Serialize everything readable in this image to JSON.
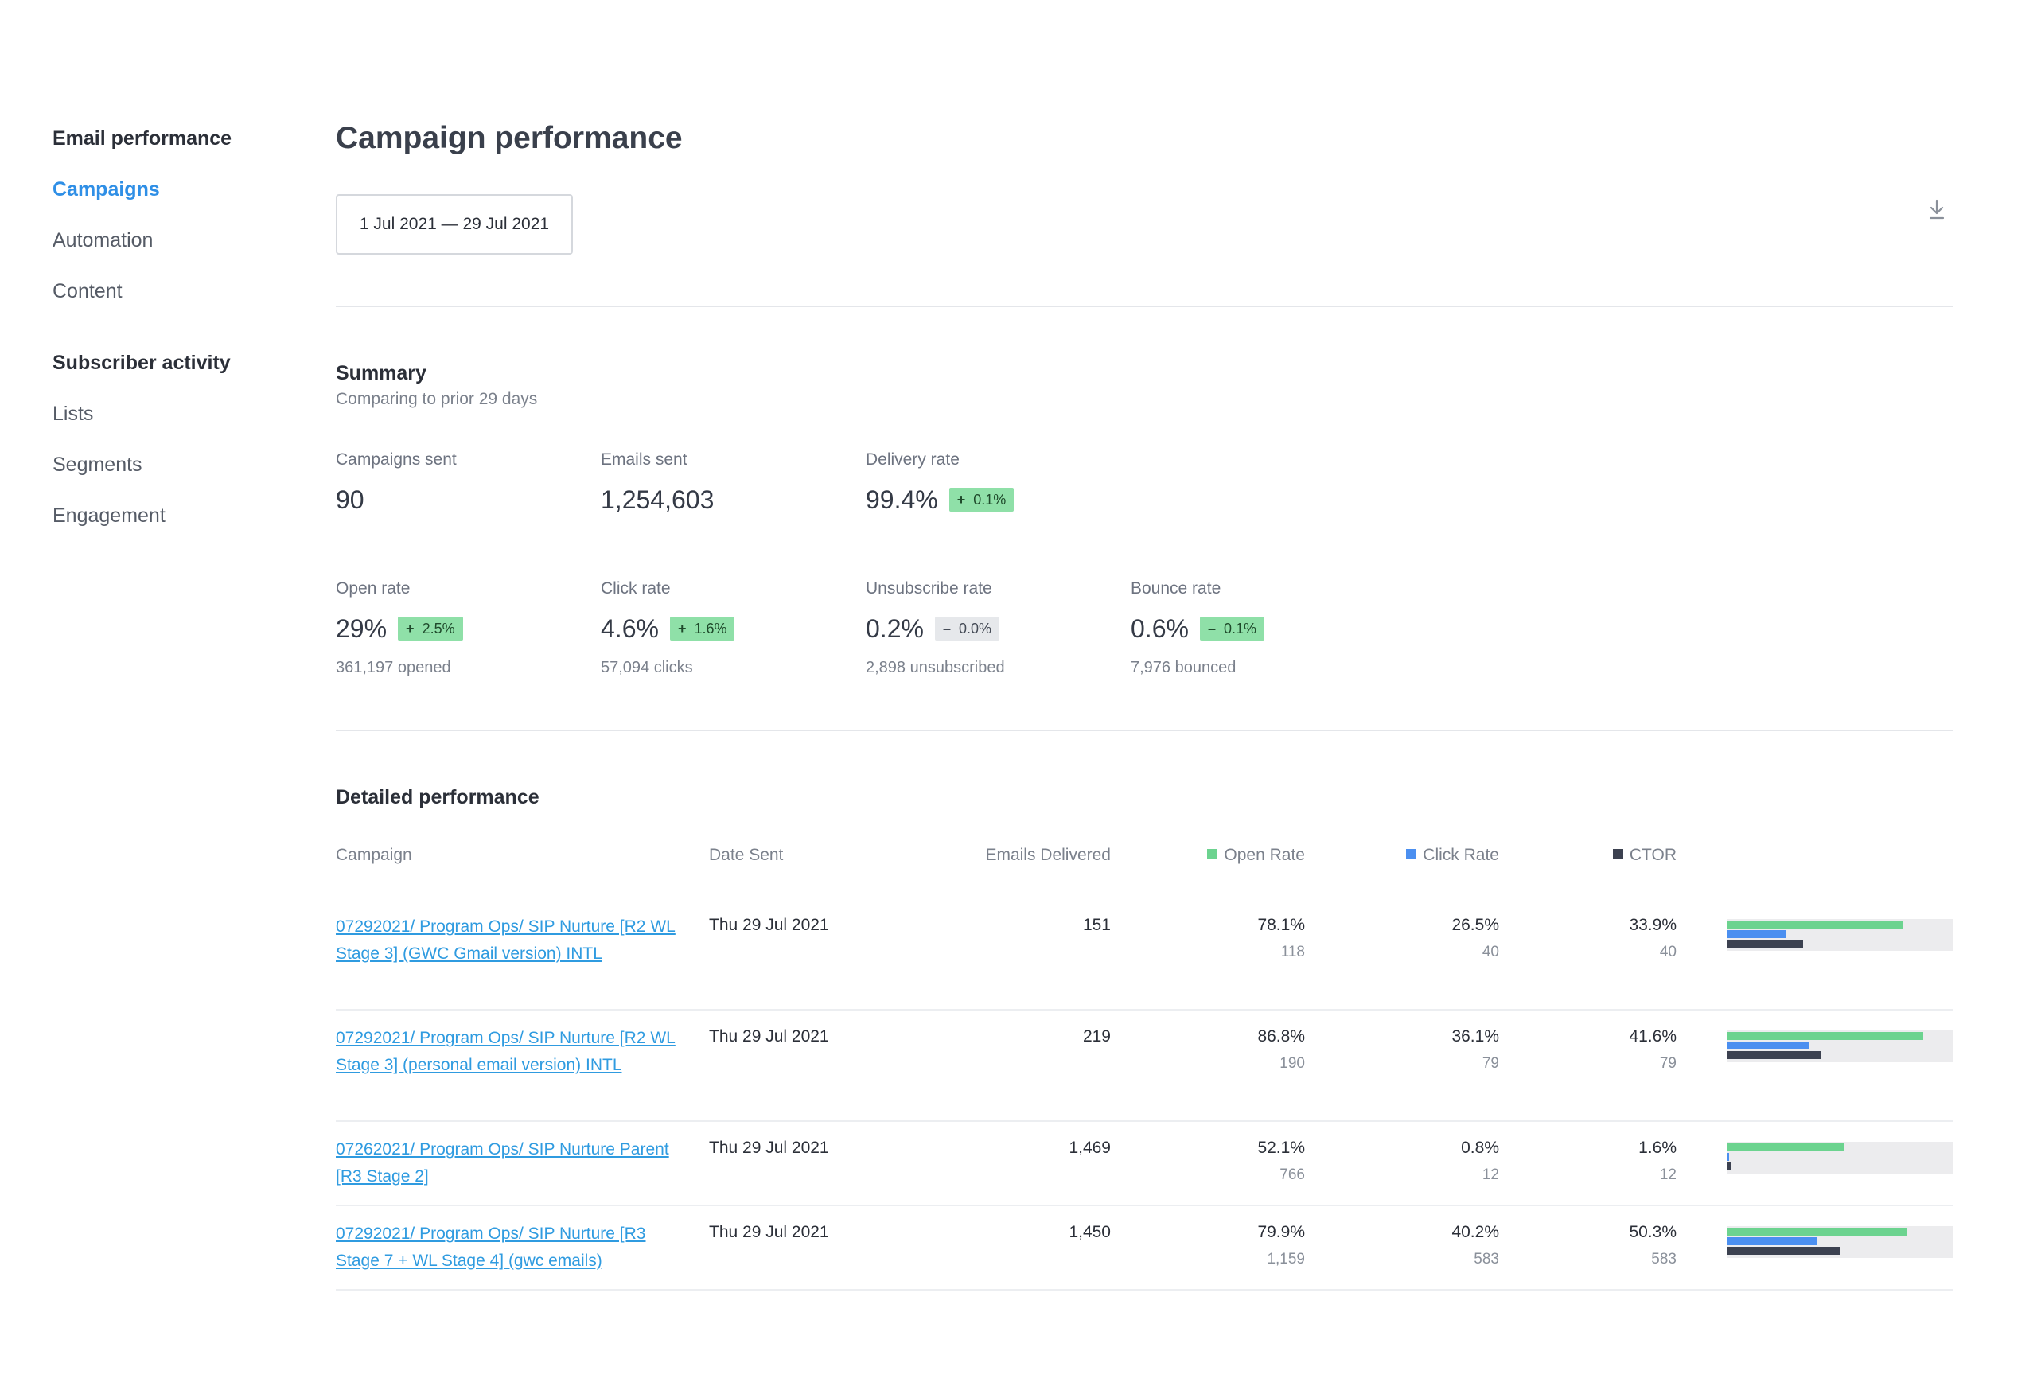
{
  "sidebar": {
    "section1": "Email performance",
    "items1": [
      "Campaigns",
      "Automation",
      "Content"
    ],
    "section2": "Subscriber activity",
    "items2": [
      "Lists",
      "Segments",
      "Engagement"
    ]
  },
  "header": {
    "title": "Campaign performance",
    "date_range": "1 Jul 2021 — 29 Jul 2021",
    "download_icon": "download-icon"
  },
  "summary": {
    "title": "Summary",
    "subtitle": "Comparing to prior 29 days",
    "metrics": [
      {
        "label": "Campaigns sent",
        "value": "90"
      },
      {
        "label": "Emails sent",
        "value": "1,254,603"
      },
      {
        "label": "Delivery rate",
        "value": "99.4%",
        "sign": "+",
        "change": "0.1%",
        "trend": "positive"
      },
      {
        "label": "Open rate",
        "value": "29%",
        "sign": "+",
        "change": "2.5%",
        "trend": "positive",
        "foot": "361,197 opened"
      },
      {
        "label": "Click rate",
        "value": "4.6%",
        "sign": "+",
        "change": "1.6%",
        "trend": "positive",
        "foot": "57,094 clicks"
      },
      {
        "label": "Unsubscribe rate",
        "value": "0.2%",
        "sign": "–",
        "change": "0.0%",
        "trend": "neutral",
        "foot": "2,898 unsubscribed"
      },
      {
        "label": "Bounce rate",
        "value": "0.6%",
        "sign": "–",
        "change": "0.1%",
        "trend": "positive",
        "foot": "7,976 bounced"
      }
    ]
  },
  "detailed": {
    "title": "Detailed performance",
    "columns": {
      "campaign": "Campaign",
      "date": "Date Sent",
      "delivered": "Emails Delivered",
      "open": "Open Rate",
      "click": "Click Rate",
      "ctor": "CTOR"
    },
    "colors": {
      "open": "#6cd38f",
      "click": "#4b8ff0",
      "ctor": "#3c4150"
    },
    "rows": [
      {
        "campaign": "07292021/ Program Ops/ SIP Nurture [R2 WL Stage 3] (GWC Gmail version) INTL",
        "date": "Thu 29 Jul 2021",
        "delivered": "151",
        "open_rate": "78.1%",
        "open_count": "118",
        "click_rate": "26.5%",
        "click_count": "40",
        "ctor": "33.9%",
        "ctor_count": "40",
        "open_pct": 78.1,
        "click_pct": 26.5,
        "ctor_pct": 33.9
      },
      {
        "campaign": "07292021/ Program Ops/ SIP Nurture [R2 WL Stage 3] (personal email version) INTL",
        "date": "Thu 29 Jul 2021",
        "delivered": "219",
        "open_rate": "86.8%",
        "open_count": "190",
        "click_rate": "36.1%",
        "click_count": "79",
        "ctor": "41.6%",
        "ctor_count": "79",
        "open_pct": 86.8,
        "click_pct": 36.1,
        "ctor_pct": 41.6
      },
      {
        "campaign": "07262021/ Program Ops/ SIP Nurture Parent [R3 Stage 2]",
        "date": "Thu 29 Jul 2021",
        "delivered": "1,469",
        "open_rate": "52.1%",
        "open_count": "766",
        "click_rate": "0.8%",
        "click_count": "12",
        "ctor": "1.6%",
        "ctor_count": "12",
        "open_pct": 52.1,
        "click_pct": 0.8,
        "ctor_pct": 1.6
      },
      {
        "campaign": "07292021/ Program Ops/ SIP Nurture [R3 Stage 7 + WL Stage 4] (gwc emails)",
        "date": "Thu 29 Jul 2021",
        "delivered": "1,450",
        "open_rate": "79.9%",
        "open_count": "1,159",
        "click_rate": "40.2%",
        "click_count": "583",
        "ctor": "50.3%",
        "ctor_count": "583",
        "open_pct": 79.9,
        "click_pct": 40.2,
        "ctor_pct": 50.3
      }
    ]
  }
}
